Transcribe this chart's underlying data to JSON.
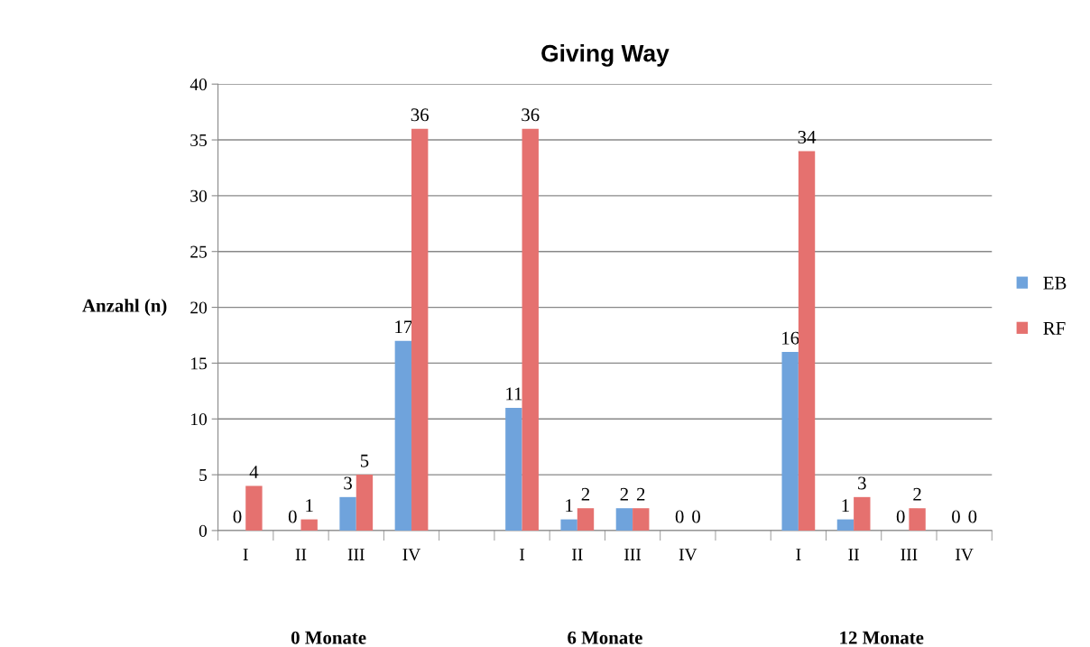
{
  "chart_data": {
    "type": "bar",
    "title": "Giving Way",
    "ylabel": "Anzahl (n)",
    "categories": [
      "I",
      "II",
      "III",
      "IV",
      null,
      "I",
      "II",
      "III",
      "IV",
      null,
      "I",
      "II",
      "III",
      "IV"
    ],
    "series": [
      {
        "name": "EB",
        "color": "#6fa3dc",
        "values": [
          0,
          0,
          3,
          17,
          null,
          11,
          1,
          2,
          0,
          null,
          16,
          1,
          0,
          0
        ]
      },
      {
        "name": "RF",
        "color": "#e5716f",
        "values": [
          4,
          1,
          5,
          36,
          null,
          36,
          2,
          2,
          0,
          null,
          34,
          3,
          2,
          0
        ]
      }
    ],
    "annotations": [
      "0 Monate",
      "6 Monate",
      "12 Monate"
    ],
    "ylim": [
      0,
      40
    ],
    "yticks": [
      0,
      5,
      10,
      15,
      20,
      25,
      30,
      35,
      40
    ],
    "grid": "y",
    "legend": "right",
    "data_labels": true
  }
}
